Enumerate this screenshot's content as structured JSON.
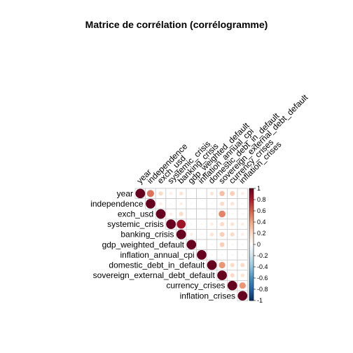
{
  "chart_data": {
    "type": "heatmap",
    "subtype": "correlogram-upper-circles",
    "title": "Matrice de corrélation (corrélogramme)",
    "variables": [
      "year",
      "independence",
      "exch_usd",
      "systemic_crisis",
      "banking_crisis",
      "gdp_weighted_default",
      "inflation_annual_cpi",
      "domestic_debt_in_default",
      "sovereign_external_debt_default",
      "currency_crises",
      "inflation_crises"
    ],
    "matrix": [
      [
        1.0,
        0.55,
        0.2,
        0.1,
        0.15,
        0.02,
        0.02,
        0.15,
        0.3,
        0.25,
        0.1
      ],
      [
        0.55,
        1.0,
        0.1,
        0.05,
        0.1,
        0.05,
        0.02,
        0.05,
        0.2,
        0.15,
        0.05
      ],
      [
        0.2,
        0.1,
        1.0,
        0.1,
        0.2,
        0.02,
        0.02,
        0.05,
        0.5,
        0.05,
        0.05
      ],
      [
        0.1,
        0.05,
        0.1,
        1.0,
        0.85,
        0.05,
        0.05,
        0.1,
        0.2,
        0.15,
        0.1
      ],
      [
        0.15,
        0.1,
        0.2,
        0.85,
        1.0,
        0.1,
        0.05,
        0.15,
        0.25,
        0.2,
        0.1
      ],
      [
        0.02,
        0.05,
        0.02,
        0.05,
        0.1,
        1.0,
        0.0,
        0.05,
        0.25,
        0.05,
        0.05
      ],
      [
        0.02,
        0.02,
        0.02,
        0.05,
        0.05,
        0.0,
        1.0,
        0.05,
        0.05,
        0.05,
        0.05
      ],
      [
        0.15,
        0.05,
        0.05,
        0.1,
        0.15,
        0.05,
        0.05,
        1.0,
        0.45,
        0.2,
        0.2
      ],
      [
        0.3,
        0.2,
        0.5,
        0.2,
        0.25,
        0.25,
        0.05,
        0.45,
        1.0,
        0.2,
        0.15
      ],
      [
        0.25,
        0.15,
        0.05,
        0.15,
        0.2,
        0.05,
        0.05,
        0.2,
        0.2,
        1.0,
        0.45
      ],
      [
        0.1,
        0.05,
        0.05,
        0.1,
        0.1,
        0.05,
        0.05,
        0.2,
        0.15,
        0.45,
        1.0
      ]
    ],
    "color_scale": {
      "ticks": [
        "1",
        "0.8",
        "0.6",
        "0.4",
        "0.2",
        "0",
        "-0.2",
        "-0.4",
        "-0.6",
        "-0.8",
        "-1"
      ],
      "range": [
        -1,
        1
      ],
      "colors": [
        "#67001F",
        "#B2182B",
        "#D6604D",
        "#F4A582",
        "#FDDBC7",
        "#FFFFFF",
        "#D1E5F0",
        "#92C5DE",
        "#4393C3",
        "#2166AC",
        "#053061"
      ]
    }
  }
}
